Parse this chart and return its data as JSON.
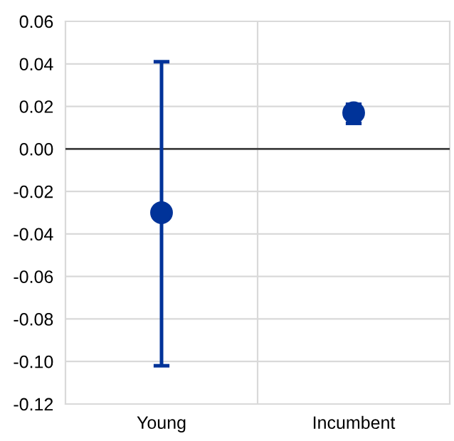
{
  "chart_data": {
    "type": "scatter",
    "categories": [
      "Young",
      "Incumbent"
    ],
    "series": [
      {
        "color": "#003399",
        "values": [
          -0.03,
          0.017
        ],
        "errors": [
          [
            -0.102,
            0.041
          ],
          [
            0.012,
            0.021
          ]
        ]
      }
    ],
    "ylim": [
      -0.12,
      0.06
    ],
    "yticks": [
      {
        "value": -0.12,
        "label": "-0.12"
      },
      {
        "value": -0.1,
        "label": "-0.10"
      },
      {
        "value": -0.08,
        "label": "-0.08"
      },
      {
        "value": -0.06,
        "label": "-0.06"
      },
      {
        "value": -0.04,
        "label": "-0.04"
      },
      {
        "value": -0.02,
        "label": "-0.02"
      },
      {
        "value": 0.0,
        "label": "0.00"
      },
      {
        "value": 0.02,
        "label": "0.02"
      },
      {
        "value": 0.04,
        "label": "0.04"
      },
      {
        "value": 0.06,
        "label": "0.06"
      }
    ],
    "ref_lines": [
      {
        "axis": "y",
        "value": 0.0,
        "color": "#404040"
      }
    ],
    "grid": true,
    "marker": "circle"
  }
}
